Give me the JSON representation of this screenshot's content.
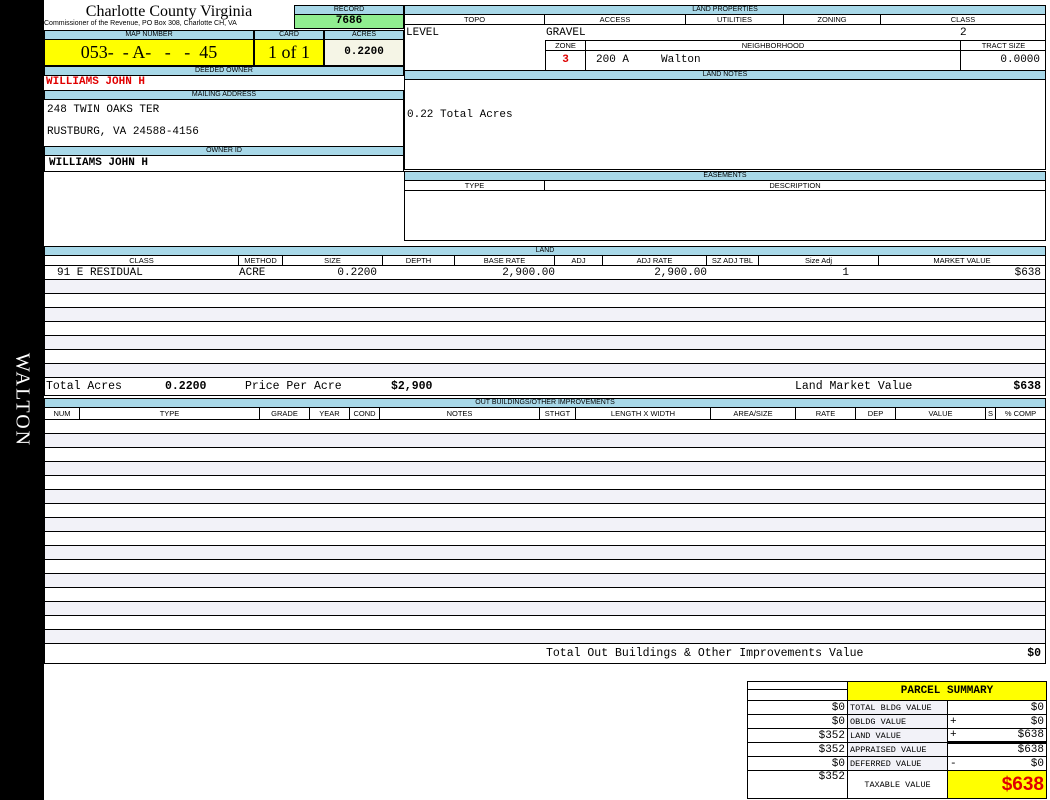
{
  "side_label": "WALTON",
  "county": {
    "title": "Charlotte County Virginia",
    "subtitle": "Commissioner of the Revenue, PO Box 308, Charlotte CH, VA"
  },
  "record": {
    "label": "RECORD",
    "value": "7686"
  },
  "map": {
    "label": "MAP NUMBER",
    "value": "053-  - A-   -   -  45"
  },
  "card": {
    "label": "CARD",
    "value": "1 of 1"
  },
  "acres": {
    "label": "ACRES",
    "value": "0.2200"
  },
  "deeded_owner": {
    "label": "DEEDED OWNER",
    "value": "WILLIAMS JOHN H"
  },
  "mailing": {
    "label": "MAILING ADDRESS",
    "line1": "248 TWIN OAKS TER",
    "line2": "RUSTBURG, VA 24588-4156"
  },
  "owner_id": {
    "label": "OWNER ID",
    "value": "WILLIAMS JOHN H"
  },
  "land_properties": {
    "label": "LAND PROPERTIES",
    "topo_h": "TOPO",
    "access_h": "ACCESS",
    "utilities_h": "UTILITIES",
    "zoning_h": "ZONING",
    "class_h": "CLASS",
    "topo": "LEVEL",
    "access": "GRAVEL",
    "class": "2",
    "zone_h": "ZONE",
    "neighborhood_h": "NEIGHBORHOOD",
    "tract_h": "TRACT SIZE",
    "zone": "3",
    "neighborhood_code": "200 A",
    "neighborhood": "Walton",
    "tract": "0.0000"
  },
  "land_notes": {
    "label": "LAND NOTES",
    "text": "0.22 Total Acres"
  },
  "easements": {
    "label": "EASEMENTS",
    "type_h": "TYPE",
    "desc_h": "DESCRIPTION"
  },
  "land": {
    "label": "LAND",
    "headers": [
      "CLASS",
      "METHOD",
      "SIZE",
      "DEPTH",
      "BASE RATE",
      "ADJ",
      "ADJ RATE",
      "SZ ADJ TBL",
      "Size Adj",
      "MARKET VALUE"
    ],
    "rows": [
      {
        "class": "91 E RESIDUAL",
        "method": "ACRE",
        "size": "0.2200",
        "depth": "",
        "base_rate": "2,900.00",
        "adj": "",
        "adj_rate": "2,900.00",
        "sz_adj_tbl": "",
        "size_adj": "1",
        "market_value": "$638"
      }
    ],
    "total_acres_label": "Total Acres",
    "total_acres": "0.2200",
    "ppa_label": "Price Per Acre",
    "ppa": "$2,900",
    "lmv_label": "Land Market Value",
    "lmv": "$638"
  },
  "outbuildings": {
    "label": "OUT BUILDINGS/OTHER IMPROVEMENTS",
    "headers": [
      "NUM",
      "TYPE",
      "GRADE",
      "YEAR",
      "COND",
      "NOTES",
      "STHGT",
      "LENGTH X WIDTH",
      "AREA/SIZE",
      "RATE",
      "DEP",
      "VALUE",
      "S",
      "% COMP"
    ],
    "total_label": "Total Out Buildings & Other Improvements Value",
    "total": "$0"
  },
  "summary": {
    "title": "PARCEL SUMMARY",
    "rows": [
      {
        "prev": "$0",
        "label": "TOTAL BLDG VALUE",
        "op": "",
        "value": "$0"
      },
      {
        "prev": "$0",
        "label": "OBLDG VALUE",
        "op": "+",
        "value": "$0"
      },
      {
        "prev": "$352",
        "label": "LAND VALUE",
        "op": "+",
        "value": "$638"
      },
      {
        "prev": "$352",
        "label": "APPRAISED VALUE",
        "op": "",
        "value": "$638"
      },
      {
        "prev": "$0",
        "label": "DEFERRED VALUE",
        "op": "-",
        "value": "$0"
      }
    ],
    "taxable_prev": "$352",
    "taxable_label": "TAXABLE VALUE",
    "taxable": "$638"
  }
}
